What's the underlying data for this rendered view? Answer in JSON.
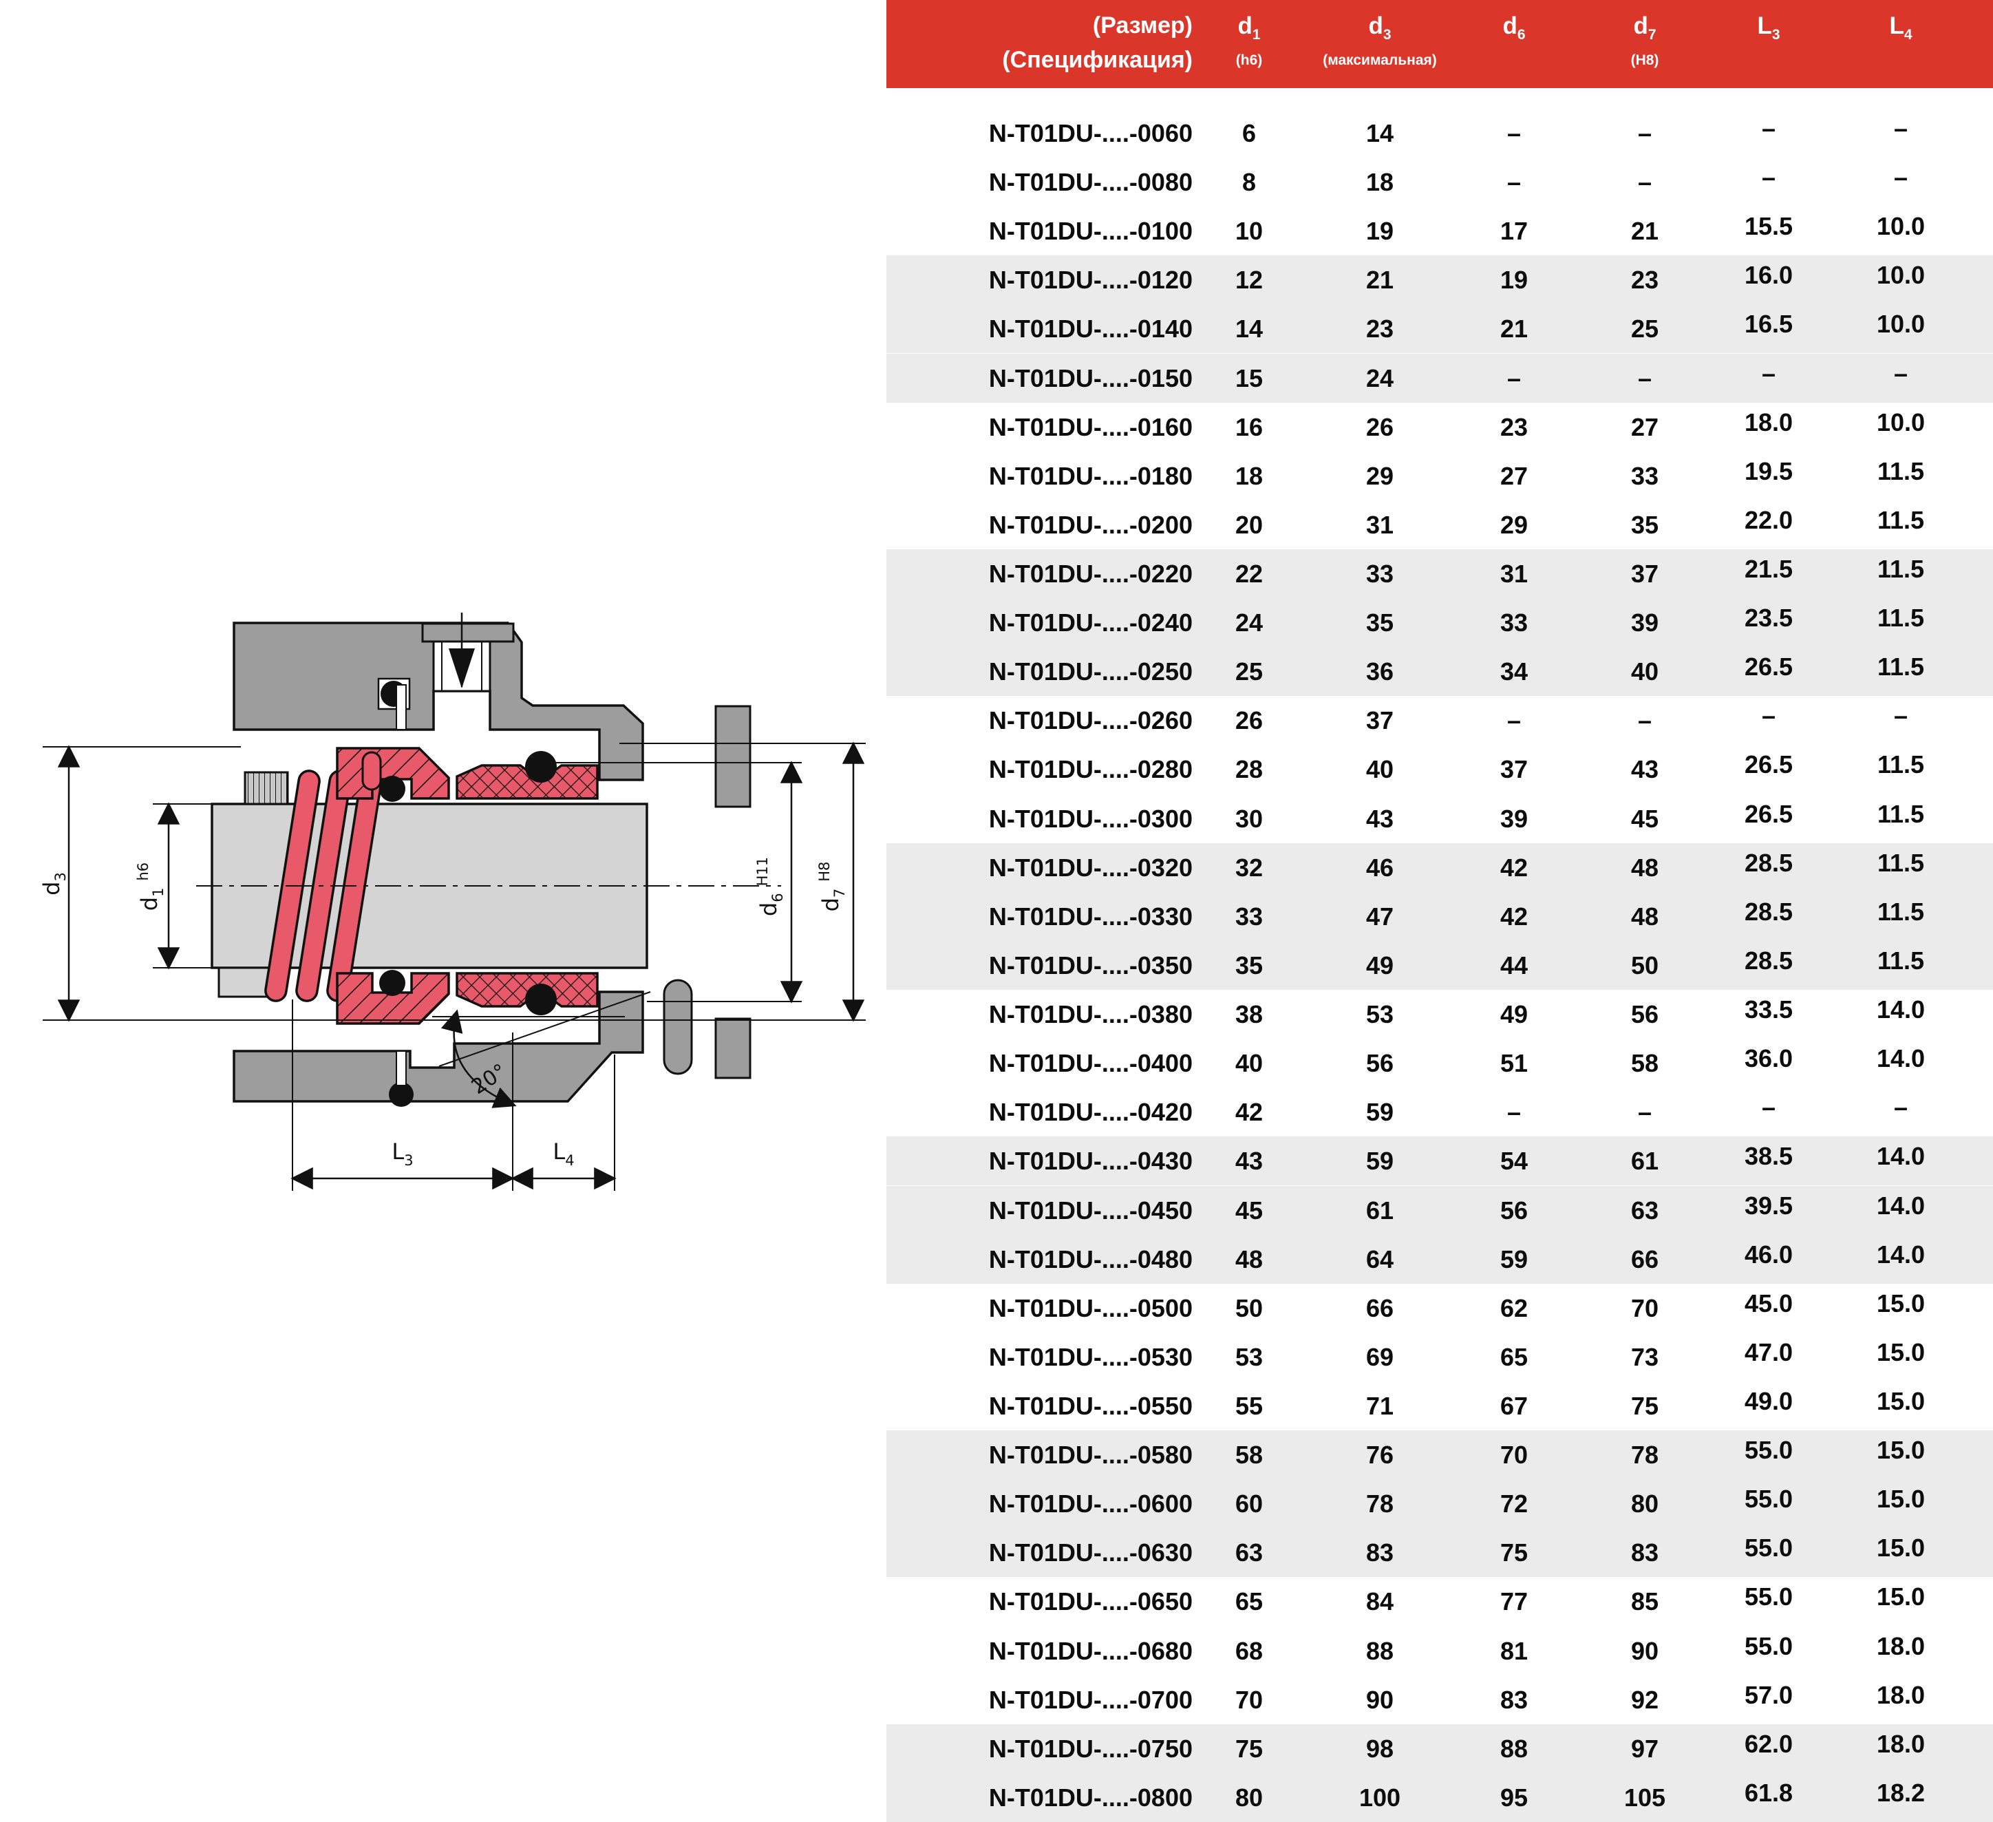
{
  "header": {
    "title_line1": "(Размер)",
    "title_line2": "(Спецификация)",
    "columns": [
      {
        "main": "d",
        "sub": "1",
        "note": "(h6)"
      },
      {
        "main": "d",
        "sub": "3",
        "note": "(максимальная)"
      },
      {
        "main": "d",
        "sub": "6",
        "note": ""
      },
      {
        "main": "d",
        "sub": "7",
        "note": "(H8)"
      },
      {
        "main": "L",
        "sub": "3",
        "note": ""
      },
      {
        "main": "L",
        "sub": "4",
        "note": ""
      }
    ]
  },
  "rows": [
    {
      "size": "N-T01DU-....-0060",
      "d1": "6",
      "d3": "14",
      "d6": "–",
      "d7": "–",
      "L3": "–",
      "L4": "–"
    },
    {
      "size": "N-T01DU-....-0080",
      "d1": "8",
      "d3": "18",
      "d6": "–",
      "d7": "–",
      "L3": "–",
      "L4": "–"
    },
    {
      "size": "N-T01DU-....-0100",
      "d1": "10",
      "d3": "19",
      "d6": "17",
      "d7": "21",
      "L3": "15.5",
      "L4": "10.0"
    },
    {
      "size": "N-T01DU-....-0120",
      "d1": "12",
      "d3": "21",
      "d6": "19",
      "d7": "23",
      "L3": "16.0",
      "L4": "10.0"
    },
    {
      "size": "N-T01DU-....-0140",
      "d1": "14",
      "d3": "23",
      "d6": "21",
      "d7": "25",
      "L3": "16.5",
      "L4": "10.0"
    },
    {
      "size": "N-T01DU-....-0150",
      "d1": "15",
      "d3": "24",
      "d6": "–",
      "d7": "–",
      "L3": "–",
      "L4": "–"
    },
    {
      "size": "N-T01DU-....-0160",
      "d1": "16",
      "d3": "26",
      "d6": "23",
      "d7": "27",
      "L3": "18.0",
      "L4": "10.0"
    },
    {
      "size": "N-T01DU-....-0180",
      "d1": "18",
      "d3": "29",
      "d6": "27",
      "d7": "33",
      "L3": "19.5",
      "L4": "11.5"
    },
    {
      "size": "N-T01DU-....-0200",
      "d1": "20",
      "d3": "31",
      "d6": "29",
      "d7": "35",
      "L3": "22.0",
      "L4": "11.5"
    },
    {
      "size": "N-T01DU-....-0220",
      "d1": "22",
      "d3": "33",
      "d6": "31",
      "d7": "37",
      "L3": "21.5",
      "L4": "11.5"
    },
    {
      "size": "N-T01DU-....-0240",
      "d1": "24",
      "d3": "35",
      "d6": "33",
      "d7": "39",
      "L3": "23.5",
      "L4": "11.5"
    },
    {
      "size": "N-T01DU-....-0250",
      "d1": "25",
      "d3": "36",
      "d6": "34",
      "d7": "40",
      "L3": "26.5",
      "L4": "11.5"
    },
    {
      "size": "N-T01DU-....-0260",
      "d1": "26",
      "d3": "37",
      "d6": "–",
      "d7": "–",
      "L3": "–",
      "L4": "–"
    },
    {
      "size": "N-T01DU-....-0280",
      "d1": "28",
      "d3": "40",
      "d6": "37",
      "d7": "43",
      "L3": "26.5",
      "L4": "11.5"
    },
    {
      "size": "N-T01DU-....-0300",
      "d1": "30",
      "d3": "43",
      "d6": "39",
      "d7": "45",
      "L3": "26.5",
      "L4": "11.5"
    },
    {
      "size": "N-T01DU-....-0320",
      "d1": "32",
      "d3": "46",
      "d6": "42",
      "d7": "48",
      "L3": "28.5",
      "L4": "11.5"
    },
    {
      "size": "N-T01DU-....-0330",
      "d1": "33",
      "d3": "47",
      "d6": "42",
      "d7": "48",
      "L3": "28.5",
      "L4": "11.5"
    },
    {
      "size": "N-T01DU-....-0350",
      "d1": "35",
      "d3": "49",
      "d6": "44",
      "d7": "50",
      "L3": "28.5",
      "L4": "11.5"
    },
    {
      "size": "N-T01DU-....-0380",
      "d1": "38",
      "d3": "53",
      "d6": "49",
      "d7": "56",
      "L3": "33.5",
      "L4": "14.0"
    },
    {
      "size": "N-T01DU-....-0400",
      "d1": "40",
      "d3": "56",
      "d6": "51",
      "d7": "58",
      "L3": "36.0",
      "L4": "14.0"
    },
    {
      "size": "N-T01DU-....-0420",
      "d1": "42",
      "d3": "59",
      "d6": "–",
      "d7": "–",
      "L3": "–",
      "L4": "–"
    },
    {
      "size": "N-T01DU-....-0430",
      "d1": "43",
      "d3": "59",
      "d6": "54",
      "d7": "61",
      "L3": "38.5",
      "L4": "14.0"
    },
    {
      "size": "N-T01DU-....-0450",
      "d1": "45",
      "d3": "61",
      "d6": "56",
      "d7": "63",
      "L3": "39.5",
      "L4": "14.0"
    },
    {
      "size": "N-T01DU-....-0480",
      "d1": "48",
      "d3": "64",
      "d6": "59",
      "d7": "66",
      "L3": "46.0",
      "L4": "14.0"
    },
    {
      "size": "N-T01DU-....-0500",
      "d1": "50",
      "d3": "66",
      "d6": "62",
      "d7": "70",
      "L3": "45.0",
      "L4": "15.0"
    },
    {
      "size": "N-T01DU-....-0530",
      "d1": "53",
      "d3": "69",
      "d6": "65",
      "d7": "73",
      "L3": "47.0",
      "L4": "15.0"
    },
    {
      "size": "N-T01DU-....-0550",
      "d1": "55",
      "d3": "71",
      "d6": "67",
      "d7": "75",
      "L3": "49.0",
      "L4": "15.0"
    },
    {
      "size": "N-T01DU-....-0580",
      "d1": "58",
      "d3": "76",
      "d6": "70",
      "d7": "78",
      "L3": "55.0",
      "L4": "15.0"
    },
    {
      "size": "N-T01DU-....-0600",
      "d1": "60",
      "d3": "78",
      "d6": "72",
      "d7": "80",
      "L3": "55.0",
      "L4": "15.0"
    },
    {
      "size": "N-T01DU-....-0630",
      "d1": "63",
      "d3": "83",
      "d6": "75",
      "d7": "83",
      "L3": "55.0",
      "L4": "15.0"
    },
    {
      "size": "N-T01DU-....-0650",
      "d1": "65",
      "d3": "84",
      "d6": "77",
      "d7": "85",
      "L3": "55.0",
      "L4": "15.0"
    },
    {
      "size": "N-T01DU-....-0680",
      "d1": "68",
      "d3": "88",
      "d6": "81",
      "d7": "90",
      "L3": "55.0",
      "L4": "18.0"
    },
    {
      "size": "N-T01DU-....-0700",
      "d1": "70",
      "d3": "90",
      "d6": "83",
      "d7": "92",
      "L3": "57.0",
      "L4": "18.0"
    },
    {
      "size": "N-T01DU-....-0750",
      "d1": "75",
      "d3": "98",
      "d6": "88",
      "d7": "97",
      "L3": "62.0",
      "L4": "18.0"
    },
    {
      "size": "N-T01DU-....-0800",
      "d1": "80",
      "d3": "100",
      "d6": "95",
      "d7": "105",
      "L3": "61.8",
      "L4": "18.2"
    }
  ],
  "diagram": {
    "labels": {
      "d3": {
        "main": "d",
        "sub": "3",
        "tol": ""
      },
      "d1": {
        "main": "d",
        "sub": "1",
        "tol": "h6"
      },
      "d6": {
        "main": "d",
        "sub": "6",
        "tol": "H11"
      },
      "d7": {
        "main": "d",
        "sub": "7",
        "tol": "H8"
      },
      "L3": {
        "main": "L",
        "sub": "3"
      },
      "L4": {
        "main": "L",
        "sub": "4"
      },
      "angle": "20°"
    }
  },
  "colors": {
    "header_red": "#DA362A",
    "row_alt_gray": "#EBEBEB",
    "housing_gray": "#9D9D9D",
    "shaft_gray": "#D4D4D4",
    "seal_red": "#E8596A"
  }
}
